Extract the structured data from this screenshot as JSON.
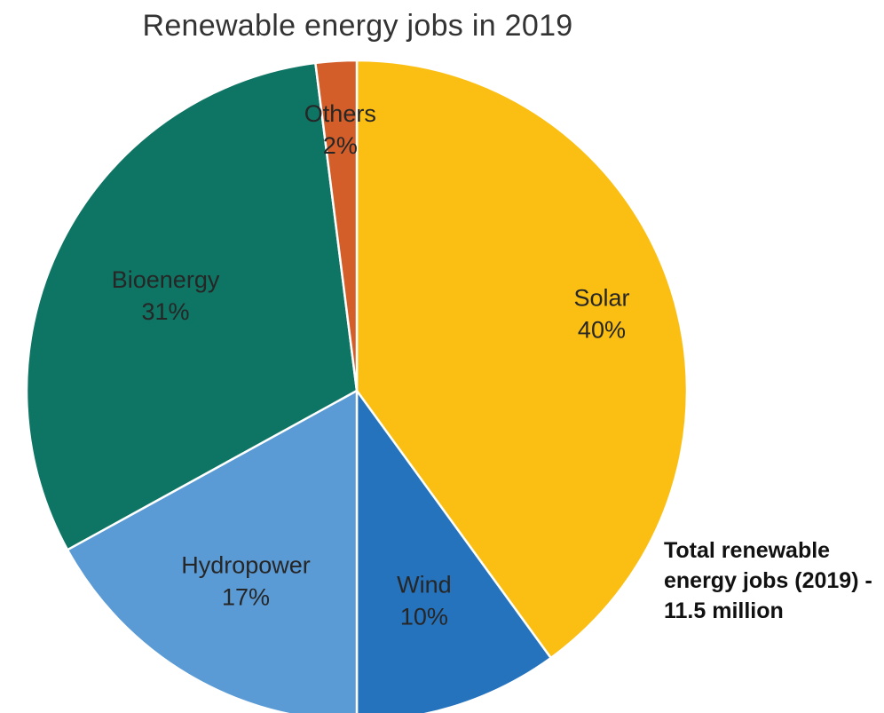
{
  "chart_data": {
    "type": "pie",
    "title": "Renewable energy jobs in 2019",
    "slices": [
      {
        "label": "Solar",
        "value": 40,
        "percent_label": "40%",
        "color": "#FBBF14"
      },
      {
        "label": "Wind",
        "value": 10,
        "percent_label": "10%",
        "color": "#2673BD"
      },
      {
        "label": "Hydropower",
        "value": 17,
        "percent_label": "17%",
        "color": "#5B9BD5"
      },
      {
        "label": "Bioenergy",
        "value": 31,
        "percent_label": "31%",
        "color": "#0E7463"
      },
      {
        "label": "Others",
        "value": 2,
        "percent_label": "2%",
        "color": "#D35E29"
      }
    ],
    "annotation": "Total renewable energy jobs (2019) - 11.5 million",
    "legend": "none"
  }
}
